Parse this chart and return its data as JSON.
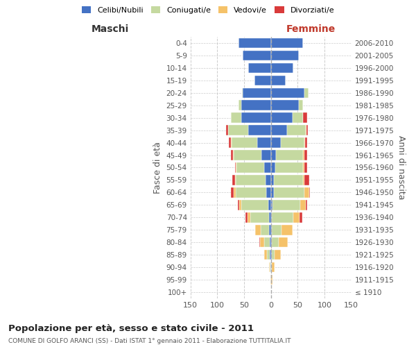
{
  "age_groups": [
    "100+",
    "95-99",
    "90-94",
    "85-89",
    "80-84",
    "75-79",
    "70-74",
    "65-69",
    "60-64",
    "55-59",
    "50-54",
    "45-49",
    "40-44",
    "35-39",
    "30-34",
    "25-29",
    "20-24",
    "15-19",
    "10-14",
    "5-9",
    "0-4"
  ],
  "birth_years": [
    "≤ 1910",
    "1911-1915",
    "1916-1920",
    "1921-1925",
    "1926-1930",
    "1931-1935",
    "1936-1940",
    "1941-1945",
    "1946-1950",
    "1951-1955",
    "1956-1960",
    "1961-1965",
    "1966-1970",
    "1971-1975",
    "1976-1980",
    "1981-1985",
    "1986-1990",
    "1991-1995",
    "1996-2000",
    "2001-2005",
    "2006-2010"
  ],
  "colors": {
    "celibe": "#4472C4",
    "coniugato": "#C5D9A0",
    "vedovo": "#F5C269",
    "divorziato": "#D93B3B"
  },
  "maschi_data": [
    [
      0,
      0,
      0,
      0
    ],
    [
      0,
      0,
      1,
      0
    ],
    [
      1,
      1,
      2,
      0
    ],
    [
      2,
      5,
      5,
      0
    ],
    [
      2,
      10,
      8,
      2
    ],
    [
      4,
      15,
      10,
      0
    ],
    [
      4,
      35,
      5,
      4
    ],
    [
      5,
      50,
      4,
      3
    ],
    [
      8,
      58,
      3,
      5
    ],
    [
      10,
      55,
      2,
      5
    ],
    [
      12,
      52,
      1,
      2
    ],
    [
      18,
      52,
      1,
      3
    ],
    [
      25,
      48,
      1,
      5
    ],
    [
      42,
      38,
      0,
      3
    ],
    [
      55,
      20,
      0,
      0
    ],
    [
      55,
      5,
      0,
      0
    ],
    [
      52,
      2,
      0,
      0
    ],
    [
      30,
      0,
      0,
      0
    ],
    [
      42,
      0,
      0,
      0
    ],
    [
      52,
      0,
      0,
      0
    ],
    [
      60,
      0,
      0,
      0
    ]
  ],
  "femmine_data": [
    [
      0,
      0,
      0,
      0
    ],
    [
      0,
      0,
      3,
      0
    ],
    [
      0,
      2,
      5,
      0
    ],
    [
      2,
      5,
      12,
      0
    ],
    [
      2,
      12,
      18,
      0
    ],
    [
      2,
      18,
      20,
      0
    ],
    [
      2,
      40,
      12,
      5
    ],
    [
      3,
      52,
      10,
      2
    ],
    [
      5,
      58,
      8,
      2
    ],
    [
      5,
      55,
      3,
      8
    ],
    [
      8,
      52,
      2,
      5
    ],
    [
      10,
      50,
      2,
      5
    ],
    [
      18,
      45,
      1,
      3
    ],
    [
      30,
      35,
      1,
      3
    ],
    [
      40,
      20,
      0,
      8
    ],
    [
      52,
      8,
      0,
      0
    ],
    [
      62,
      8,
      0,
      0
    ],
    [
      28,
      0,
      0,
      0
    ],
    [
      42,
      0,
      0,
      0
    ],
    [
      52,
      0,
      0,
      0
    ],
    [
      60,
      0,
      0,
      0
    ]
  ],
  "xlim": 150,
  "title": "Popolazione per età, sesso e stato civile - 2011",
  "subtitle": "COMUNE DI GOLFO ARANCI (SS) - Dati ISTAT 1° gennaio 2011 - Elaborazione TUTTITALIA.IT",
  "ylabel_left": "Fasce di età",
  "ylabel_right": "Anni di nascita",
  "xlabel_left": "Maschi",
  "xlabel_right": "Femmine",
  "legend_labels": [
    "Celibi/Nubili",
    "Coniugati/e",
    "Vedovi/e",
    "Divorziati/e"
  ],
  "bg_color": "#FFFFFF",
  "grid_color": "#CCCCCC"
}
